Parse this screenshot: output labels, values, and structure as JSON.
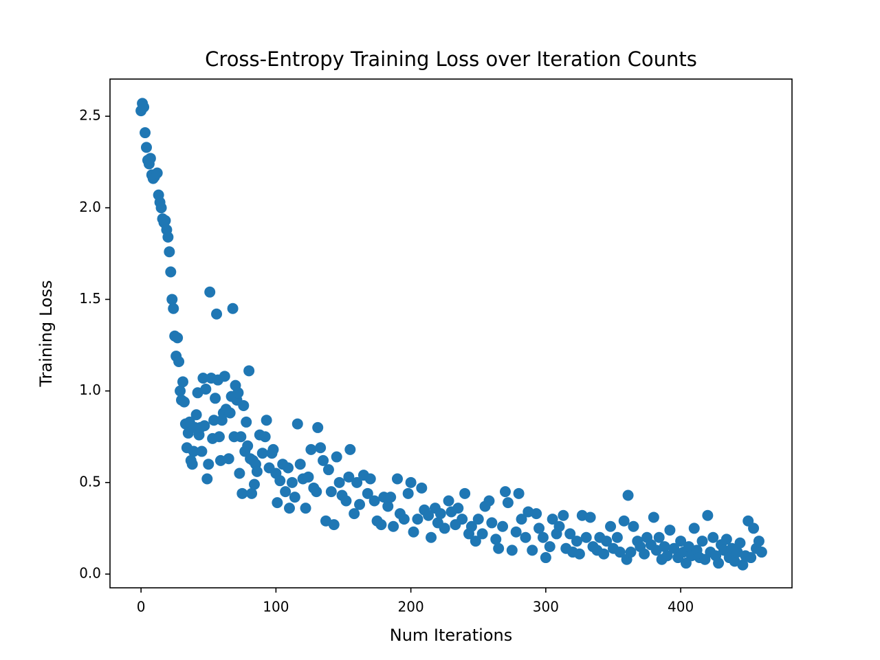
{
  "chart_data": {
    "type": "scatter",
    "title": "Cross-Entropy Training Loss over Iteration Counts",
    "x_label": "Num Iterations",
    "y_label": "Training Loss",
    "color": "#1f77b4",
    "xlim": [
      -23,
      482.5
    ],
    "ylim": [
      -0.075,
      2.703
    ],
    "xticks": [
      0,
      100,
      200,
      300,
      400
    ],
    "yticks": [
      {
        "value": 0,
        "label": "0.0"
      },
      0.5,
      {
        "value": 1,
        "label": "1.0"
      },
      1.5,
      {
        "value": 2,
        "label": "2.0"
      },
      2.5
    ],
    "x": [
      0,
      1,
      2,
      3,
      4,
      5,
      6,
      7,
      8,
      9,
      10,
      12,
      13,
      14,
      15,
      16,
      17,
      18,
      19,
      20,
      21,
      22,
      23,
      24,
      25,
      26,
      27,
      28,
      29,
      30,
      31,
      32,
      33,
      34,
      35,
      36,
      37,
      38,
      39,
      40,
      41,
      42,
      43,
      44,
      45,
      46,
      47,
      48,
      49,
      50,
      51,
      52,
      53,
      54,
      55,
      56,
      57,
      58,
      59,
      60,
      61,
      62,
      63,
      65,
      66,
      67,
      68,
      69,
      70,
      71,
      72,
      73,
      74,
      75,
      76,
      77,
      78,
      79,
      80,
      81,
      82,
      83,
      84,
      85,
      86,
      88,
      90,
      92,
      93,
      95,
      97,
      98,
      100,
      101,
      103,
      105,
      107,
      109,
      110,
      112,
      114,
      116,
      118,
      120,
      122,
      124,
      126,
      128,
      130,
      131,
      133,
      135,
      137,
      139,
      141,
      143,
      145,
      147,
      149,
      152,
      154,
      155,
      158,
      160,
      162,
      165,
      168,
      170,
      173,
      175,
      178,
      180,
      183,
      185,
      187,
      190,
      192,
      195,
      198,
      200,
      202,
      205,
      208,
      210,
      213,
      215,
      218,
      220,
      222,
      225,
      228,
      230,
      233,
      235,
      238,
      240,
      243,
      245,
      248,
      250,
      253,
      255,
      258,
      260,
      263,
      265,
      268,
      270,
      272,
      275,
      278,
      280,
      282,
      285,
      287,
      290,
      293,
      295,
      298,
      300,
      303,
      305,
      308,
      310,
      313,
      315,
      318,
      320,
      323,
      325,
      327,
      330,
      333,
      335,
      338,
      340,
      343,
      345,
      348,
      350,
      353,
      355,
      358,
      360,
      361,
      363,
      365,
      368,
      370,
      373,
      375,
      378,
      380,
      382,
      384,
      386,
      388,
      390,
      392,
      395,
      398,
      400,
      402,
      404,
      406,
      408,
      410,
      412,
      414,
      416,
      418,
      420,
      422,
      424,
      426,
      428,
      430,
      432,
      434,
      436,
      438,
      440,
      442,
      444,
      446,
      448,
      450,
      452,
      454,
      456,
      458,
      460
    ],
    "values": [
      2.53,
      2.57,
      2.55,
      2.41,
      2.33,
      2.26,
      2.24,
      2.27,
      2.18,
      2.16,
      2.17,
      2.19,
      2.07,
      2.03,
      2.0,
      1.94,
      1.92,
      1.93,
      1.88,
      1.84,
      1.76,
      1.65,
      1.5,
      1.45,
      1.3,
      1.19,
      1.29,
      1.16,
      1.0,
      0.95,
      1.05,
      0.94,
      0.82,
      0.69,
      0.77,
      0.83,
      0.62,
      0.6,
      0.67,
      0.8,
      0.87,
      0.99,
      0.76,
      0.8,
      0.67,
      1.07,
      0.81,
      1.01,
      0.52,
      0.6,
      1.54,
      1.07,
      0.74,
      0.84,
      0.96,
      1.42,
      1.06,
      0.75,
      0.62,
      0.84,
      0.88,
      1.08,
      0.9,
      0.63,
      0.88,
      0.97,
      1.45,
      0.75,
      1.03,
      0.95,
      0.99,
      0.55,
      0.75,
      0.44,
      0.92,
      0.67,
      0.83,
      0.7,
      1.11,
      0.63,
      0.44,
      0.62,
      0.49,
      0.6,
      0.56,
      0.76,
      0.66,
      0.75,
      0.84,
      0.58,
      0.66,
      0.68,
      0.55,
      0.39,
      0.51,
      0.6,
      0.45,
      0.58,
      0.36,
      0.5,
      0.42,
      0.82,
      0.6,
      0.52,
      0.36,
      0.53,
      0.68,
      0.47,
      0.45,
      0.8,
      0.69,
      0.62,
      0.29,
      0.57,
      0.45,
      0.27,
      0.64,
      0.5,
      0.43,
      0.4,
      0.53,
      0.68,
      0.33,
      0.5,
      0.38,
      0.54,
      0.44,
      0.52,
      0.4,
      0.29,
      0.27,
      0.42,
      0.37,
      0.42,
      0.26,
      0.52,
      0.33,
      0.3,
      0.44,
      0.5,
      0.23,
      0.3,
      0.47,
      0.35,
      0.32,
      0.2,
      0.36,
      0.28,
      0.33,
      0.25,
      0.4,
      0.34,
      0.27,
      0.36,
      0.3,
      0.44,
      0.22,
      0.26,
      0.18,
      0.3,
      0.22,
      0.37,
      0.4,
      0.28,
      0.19,
      0.14,
      0.26,
      0.45,
      0.39,
      0.13,
      0.23,
      0.44,
      0.3,
      0.2,
      0.34,
      0.13,
      0.33,
      0.25,
      0.2,
      0.09,
      0.15,
      0.3,
      0.22,
      0.26,
      0.32,
      0.14,
      0.22,
      0.12,
      0.18,
      0.11,
      0.32,
      0.2,
      0.31,
      0.15,
      0.13,
      0.2,
      0.11,
      0.18,
      0.26,
      0.14,
      0.2,
      0.12,
      0.29,
      0.08,
      0.43,
      0.12,
      0.26,
      0.18,
      0.15,
      0.11,
      0.2,
      0.16,
      0.31,
      0.13,
      0.2,
      0.08,
      0.15,
      0.1,
      0.24,
      0.14,
      0.09,
      0.18,
      0.12,
      0.06,
      0.15,
      0.1,
      0.25,
      0.13,
      0.09,
      0.18,
      0.08,
      0.32,
      0.12,
      0.2,
      0.1,
      0.06,
      0.16,
      0.13,
      0.19,
      0.09,
      0.14,
      0.07,
      0.12,
      0.17,
      0.05,
      0.1,
      0.29,
      0.09,
      0.25,
      0.14,
      0.18,
      0.12
    ]
  }
}
